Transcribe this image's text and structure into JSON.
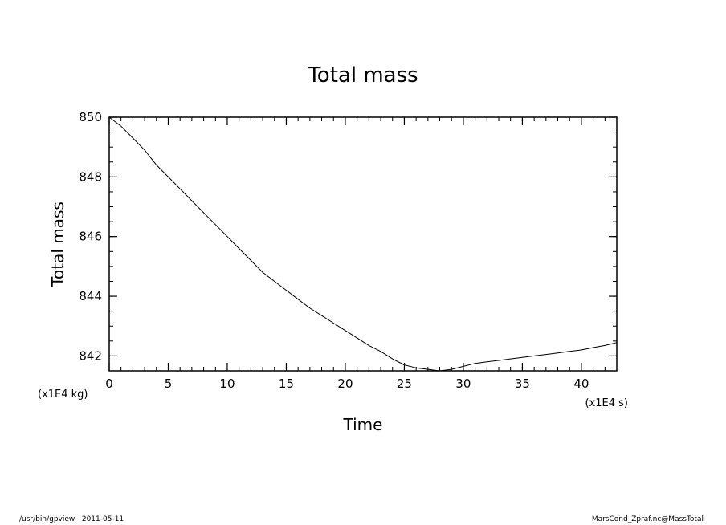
{
  "chart_data": {
    "type": "line",
    "title": "Total mass",
    "xlabel": "Time",
    "ylabel": "Total mass",
    "x_unit": "(x1E4 s)",
    "y_unit": "(x1E4 kg)",
    "xlim": [
      0,
      43
    ],
    "ylim": [
      841.5,
      850
    ],
    "x_ticks": [
      0,
      5,
      10,
      15,
      20,
      25,
      30,
      35,
      40
    ],
    "y_ticks": [
      842,
      844,
      846,
      848,
      850
    ],
    "grid": false,
    "series": [
      {
        "x": [
          0,
          1,
          2,
          3,
          4,
          5,
          6,
          7,
          8,
          9,
          10,
          11,
          12,
          13,
          14,
          15,
          16,
          17,
          18,
          19,
          20,
          21,
          22,
          23,
          24,
          25,
          26,
          27,
          28,
          29,
          30,
          31,
          32,
          33,
          34,
          35,
          36,
          37,
          38,
          39,
          40,
          41,
          42,
          43
        ],
        "y": [
          850.0,
          849.7,
          849.3,
          848.9,
          848.4,
          848.0,
          847.6,
          847.2,
          846.8,
          846.4,
          846.0,
          845.6,
          845.2,
          844.8,
          844.5,
          844.2,
          843.9,
          843.6,
          843.35,
          843.1,
          842.85,
          842.6,
          842.35,
          842.15,
          841.9,
          841.7,
          841.6,
          841.55,
          841.5,
          841.55,
          841.65,
          841.75,
          841.8,
          841.85,
          841.9,
          841.95,
          842.0,
          842.05,
          842.1,
          842.15,
          842.2,
          842.28,
          842.35,
          842.45
        ]
      }
    ]
  },
  "footer": {
    "left": "/usr/bin/gpview   2011-05-11",
    "right": "MarsCond_Zpraf.nc@MassTotal"
  }
}
